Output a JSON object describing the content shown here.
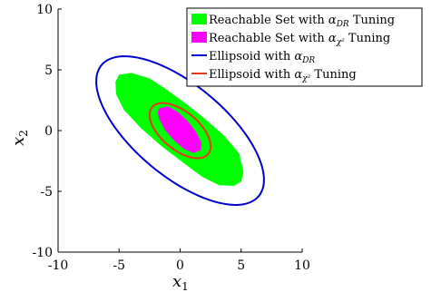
{
  "chart_data": {
    "type": "scatter",
    "title": "",
    "xlabel": "x",
    "xlabel_sub": "1",
    "ylabel": "x",
    "ylabel_sub": "2",
    "xlim": [
      -10,
      10
    ],
    "ylim": [
      -10,
      10
    ],
    "xticks": [
      -10,
      -5,
      0,
      5,
      10
    ],
    "yticks": [
      -10,
      -5,
      0,
      5,
      10
    ],
    "xtick_labels": [
      "-10",
      "-5",
      "0",
      "5",
      "10"
    ],
    "ytick_labels": [
      "-10",
      "-5",
      "0",
      "5",
      "10"
    ],
    "grid": false,
    "legend_position": "top-right",
    "legend": [
      {
        "key": "green",
        "prefix": "Reachable Set with ",
        "sym": "α",
        "sub": "DR",
        "suffix": " Tuning",
        "color": "#00ff00",
        "kind": "patch"
      },
      {
        "key": "magenta",
        "prefix": "Reachable Set with ",
        "sym": "α",
        "sub": "χ²",
        "suffix": " Tuning",
        "color": "#ff00ff",
        "kind": "patch"
      },
      {
        "key": "blue",
        "prefix": "Ellipsoid with ",
        "sym": "α",
        "sub": "DR",
        "suffix": "",
        "color": "#0000cc",
        "kind": "line"
      },
      {
        "key": "red",
        "prefix": "Ellipsoid with ",
        "sym": "α",
        "sub": "χ²",
        "suffix": " Tuning",
        "color": "#e8351c",
        "kind": "line"
      }
    ],
    "series": [
      {
        "name": "Reachable Set with αDR Tuning",
        "kind": "area",
        "color": "#00ff00",
        "points": [
          [
            -5.0,
            4.6
          ],
          [
            -4.0,
            4.75
          ],
          [
            -2.5,
            4.3
          ],
          [
            -1.0,
            3.3
          ],
          [
            0.5,
            2.2
          ],
          [
            2.0,
            1.0
          ],
          [
            3.6,
            -0.4
          ],
          [
            4.85,
            -1.9
          ],
          [
            5.2,
            -3.4
          ],
          [
            5.0,
            -4.2
          ],
          [
            4.4,
            -4.55
          ],
          [
            3.2,
            -4.5
          ],
          [
            1.8,
            -3.8
          ],
          [
            0.2,
            -2.6
          ],
          [
            -1.5,
            -1.3
          ],
          [
            -3.2,
            0.2
          ],
          [
            -4.6,
            1.7
          ],
          [
            -5.25,
            3.0
          ],
          [
            -5.3,
            4.0
          ]
        ]
      },
      {
        "name": "Reachable Set with αχ² Tuning",
        "kind": "area",
        "color": "#ff00ff",
        "points": [
          [
            -1.7,
            1.85
          ],
          [
            -1.0,
            2.0
          ],
          [
            -0.2,
            1.55
          ],
          [
            0.6,
            0.8
          ],
          [
            1.3,
            -0.1
          ],
          [
            1.75,
            -1.0
          ],
          [
            1.7,
            -1.6
          ],
          [
            1.1,
            -1.85
          ],
          [
            0.3,
            -1.5
          ],
          [
            -0.5,
            -0.8
          ],
          [
            -1.2,
            0.0
          ],
          [
            -1.7,
            0.9
          ],
          [
            -1.85,
            1.5
          ]
        ]
      },
      {
        "name": "Ellipsoid with αDR",
        "kind": "ellipse",
        "color": "#0000cc",
        "center": [
          0,
          0
        ],
        "semi_major": 8.4,
        "semi_minor": 3.75,
        "angle_deg": -40
      },
      {
        "name": "Ellipsoid with αχ² Tuning",
        "kind": "ellipse",
        "color": "#e8351c",
        "center": [
          0,
          0
        ],
        "semi_major": 3.0,
        "semi_minor": 1.55,
        "angle_deg": -40
      }
    ]
  }
}
